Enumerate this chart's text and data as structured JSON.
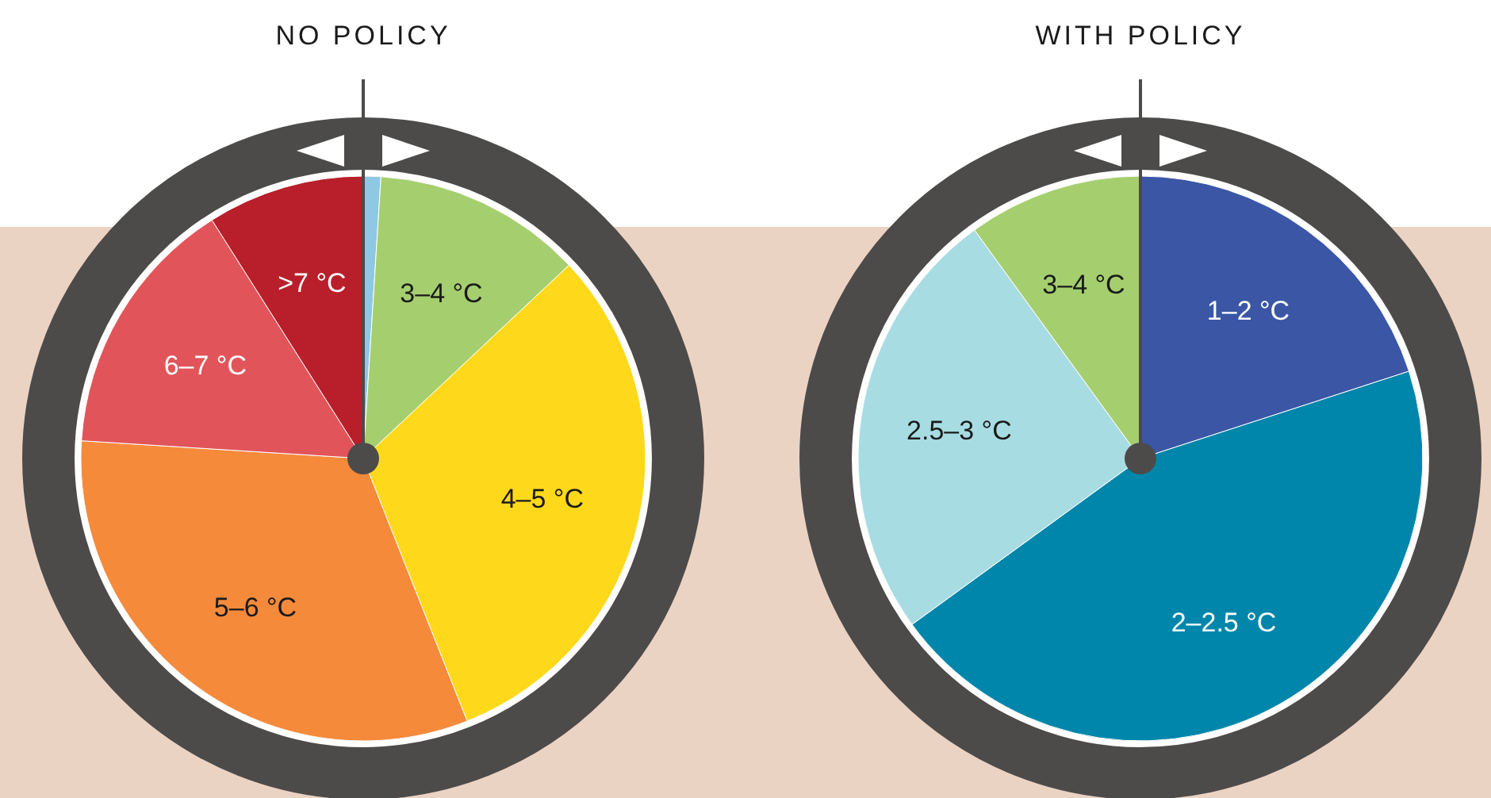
{
  "chart_data": [
    {
      "type": "pie",
      "title": "NO POLICY",
      "categories": [
        null,
        "3–4 °C",
        "4–5 °C",
        "5–6 °C",
        "6–7 °C",
        ">7 °C"
      ],
      "values": [
        1,
        12,
        31,
        32,
        15,
        9
      ],
      "colors": [
        "#8ec8e3",
        "#a5cf6f",
        "#fed91b",
        "#f58a3b",
        "#e1555a",
        "#b81f2a"
      ]
    },
    {
      "type": "pie",
      "title": "WITH POLICY",
      "categories": [
        "1–2 °C",
        "2–2.5 °C",
        "2.5–3 °C",
        "3–4 °C"
      ],
      "values": [
        20,
        45,
        25,
        10
      ],
      "colors": [
        "#3a56a5",
        "#0086ab",
        "#a8dce3",
        "#a5cf6f"
      ]
    }
  ]
}
